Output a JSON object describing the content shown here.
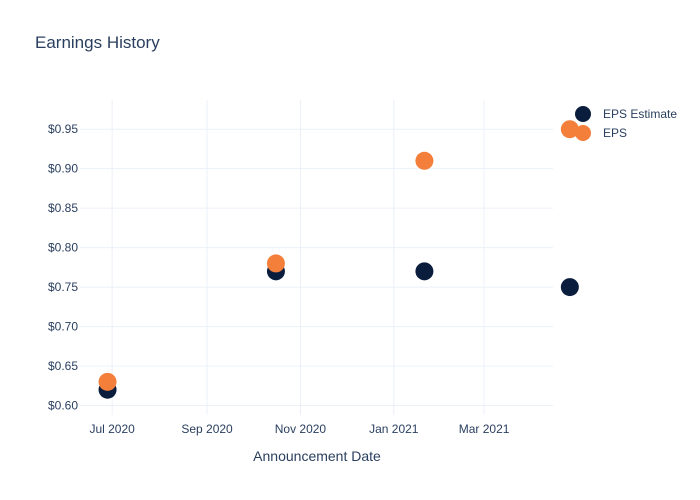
{
  "chart_data": {
    "type": "scatter",
    "title": "Earnings History",
    "xlabel": "Announcement Date",
    "ylabel": "",
    "x_ticks": [
      "2020-07-01",
      "2020-09-01",
      "2020-11-01",
      "2021-01-01",
      "2021-03-01"
    ],
    "x_tick_labels": [
      "Jul 2020",
      "Sep 2020",
      "Nov 2020",
      "Jan 2021",
      "Mar 2021"
    ],
    "xlim": [
      "2020-06-10",
      "2021-04-15"
    ],
    "ylim": [
      0.588,
      0.987
    ],
    "y_ticks": [
      0.6,
      0.65,
      0.7,
      0.75,
      0.8,
      0.85,
      0.9,
      0.95
    ],
    "y_tick_labels": [
      "$0.60",
      "$0.65",
      "$0.70",
      "$0.75",
      "$0.80",
      "$0.85",
      "$0.90",
      "$0.95"
    ],
    "grid": true,
    "legend_position": "top-right",
    "series": [
      {
        "name": "EPS Estimate",
        "color": "#0b1d3d",
        "x": [
          "2020-06-28",
          "2020-10-16",
          "2021-01-21",
          "2021-04-26"
        ],
        "y": [
          0.62,
          0.77,
          0.77,
          0.75
        ]
      },
      {
        "name": "EPS",
        "color": "#f47f3a",
        "x": [
          "2020-06-28",
          "2020-10-16",
          "2021-01-21",
          "2021-04-26"
        ],
        "y": [
          0.63,
          0.78,
          0.91,
          0.95
        ]
      }
    ]
  }
}
